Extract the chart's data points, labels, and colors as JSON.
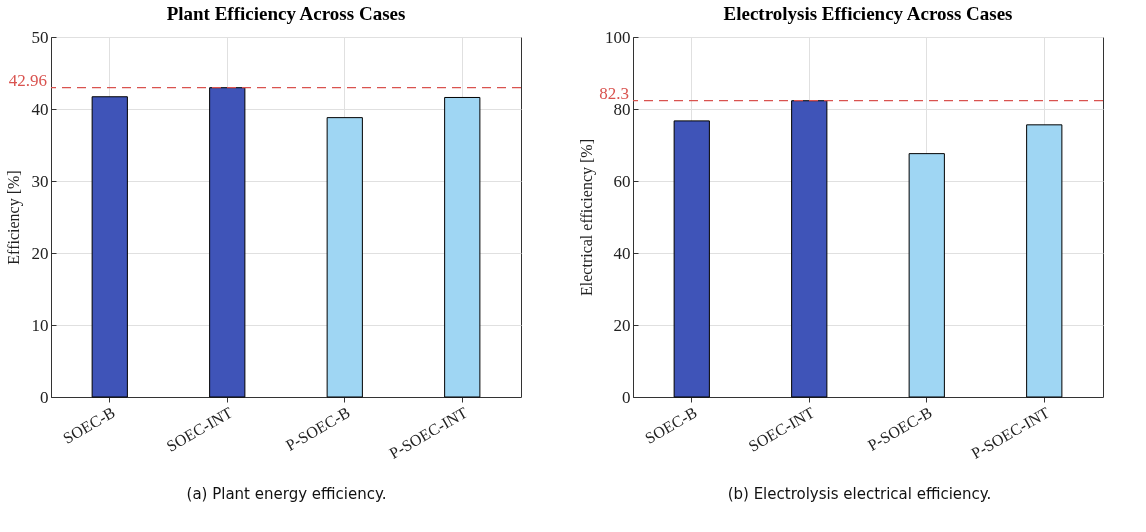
{
  "chart_data": [
    {
      "type": "bar",
      "title": "Plant Efficiency Across Cases",
      "ylabel": "Efficiency [%]",
      "categories": [
        "SOEC-B",
        "SOEC-INT",
        "P-SOEC-B",
        "P-SOEC-INT"
      ],
      "values": [
        41.7,
        42.96,
        38.8,
        41.6
      ],
      "colors": [
        "#3f54b8",
        "#3f54b8",
        "#9fd6f3",
        "#9fd6f3"
      ],
      "ylim": [
        0,
        50
      ],
      "yticks": [
        0,
        10,
        20,
        30,
        40,
        50
      ],
      "grid": true,
      "ref_lines": [
        {
          "axis": "y",
          "value": 42.96,
          "label": "42.96",
          "color": "#d9534f",
          "line_style": "dashed"
        }
      ],
      "annotations": [
        "(a) Plant energy efficiency."
      ]
    },
    {
      "type": "bar",
      "title": "Electrolysis Efficiency Across Cases",
      "ylabel": "Electrical efficiency [%]",
      "categories": [
        "SOEC-B",
        "SOEC-INT",
        "P-SOEC-B",
        "P-SOEC-INT"
      ],
      "values": [
        76.7,
        82.3,
        67.6,
        75.6
      ],
      "colors": [
        "#3f54b8",
        "#3f54b8",
        "#9fd6f3",
        "#9fd6f3"
      ],
      "ylim": [
        0,
        100
      ],
      "yticks": [
        0,
        20,
        40,
        60,
        80,
        100
      ],
      "grid": true,
      "ref_lines": [
        {
          "axis": "y",
          "value": 82.3,
          "label": "82.3",
          "color": "#d9534f",
          "line_style": "dashed"
        }
      ],
      "annotations": [
        "(b) Electrolysis electrical efficiency."
      ]
    }
  ]
}
